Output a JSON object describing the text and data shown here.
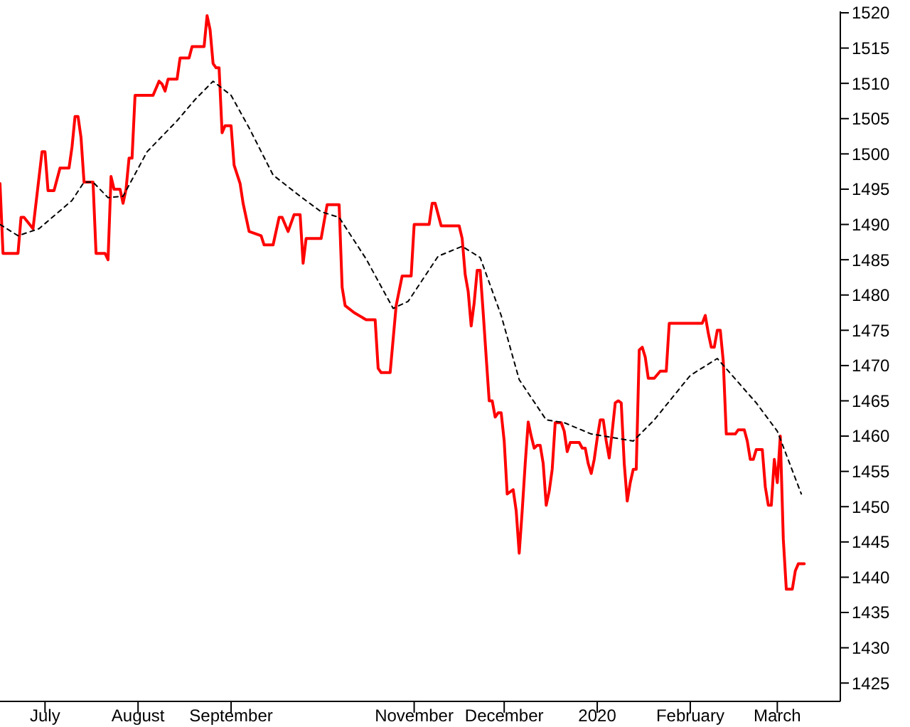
{
  "chart_data": {
    "type": "line",
    "xlim": [
      "2019-06-16",
      "2020-03-22"
    ],
    "ylim": [
      1422.4,
      1520.2
    ],
    "xticks": [
      {
        "value": "2019-07-01",
        "label": "July"
      },
      {
        "value": "2019-08-01",
        "label": "August"
      },
      {
        "value": "2019-09-01",
        "label": "September"
      },
      {
        "value": "2019-11-01",
        "label": "November"
      },
      {
        "value": "2019-12-01",
        "label": "December"
      },
      {
        "value": "2020-01-01",
        "label": "2020"
      },
      {
        "value": "2020-02-01",
        "label": "February"
      },
      {
        "value": "2020-03-01",
        "label": "March"
      }
    ],
    "yticks": [
      1425,
      1430,
      1435,
      1440,
      1445,
      1450,
      1455,
      1460,
      1465,
      1470,
      1475,
      1480,
      1485,
      1490,
      1495,
      1500,
      1505,
      1510,
      1515,
      1520
    ],
    "grid": false,
    "marker": "none",
    "series": [
      {
        "color": "#ff0000",
        "line_style": "solid",
        "x": [
          "2019-06-16",
          "2019-06-17",
          "2019-06-22",
          "2019-06-23",
          "2019-06-24",
          "2019-06-27",
          "2019-06-30",
          "2019-07-01",
          "2019-07-02",
          "2019-07-04",
          "2019-07-06",
          "2019-07-09",
          "2019-07-10",
          "2019-07-11",
          "2019-07-12",
          "2019-07-13",
          "2019-07-14",
          "2019-07-17",
          "2019-07-18",
          "2019-07-21",
          "2019-07-22",
          "2019-07-23",
          "2019-07-24",
          "2019-07-26",
          "2019-07-27",
          "2019-07-28",
          "2019-07-29",
          "2019-07-30",
          "2019-07-31",
          "2019-08-06",
          "2019-08-08",
          "2019-08-09",
          "2019-08-10",
          "2019-08-11",
          "2019-08-14",
          "2019-08-15",
          "2019-08-18",
          "2019-08-19",
          "2019-08-23",
          "2019-08-24",
          "2019-08-25",
          "2019-08-26",
          "2019-08-27",
          "2019-08-28",
          "2019-08-29",
          "2019-08-30",
          "2019-09-01",
          "2019-09-02",
          "2019-09-04",
          "2019-09-05",
          "2019-09-07",
          "2019-09-11",
          "2019-09-12",
          "2019-09-15",
          "2019-09-17",
          "2019-09-18",
          "2019-09-20",
          "2019-09-22",
          "2019-09-24",
          "2019-09-25",
          "2019-09-26",
          "2019-10-01",
          "2019-10-03",
          "2019-10-07",
          "2019-10-08",
          "2019-10-09",
          "2019-10-12",
          "2019-10-16",
          "2019-10-19",
          "2019-10-20",
          "2019-10-21",
          "2019-10-24",
          "2019-10-26",
          "2019-10-28",
          "2019-10-31",
          "2019-11-01",
          "2019-11-06",
          "2019-11-07",
          "2019-11-08",
          "2019-11-10",
          "2019-11-16",
          "2019-11-17",
          "2019-11-18",
          "2019-11-19",
          "2019-11-20",
          "2019-11-21",
          "2019-11-22",
          "2019-11-23",
          "2019-11-24",
          "2019-11-25",
          "2019-11-26",
          "2019-11-27",
          "2019-11-28",
          "2019-11-29",
          "2019-11-30",
          "2019-12-01",
          "2019-12-02",
          "2019-12-04",
          "2019-12-05",
          "2019-12-06",
          "2019-12-07",
          "2019-12-08",
          "2019-12-09",
          "2019-12-10",
          "2019-12-11",
          "2019-12-12",
          "2019-12-13",
          "2019-12-14",
          "2019-12-15",
          "2019-12-16",
          "2019-12-17",
          "2019-12-18",
          "2019-12-20",
          "2019-12-21",
          "2019-12-22",
          "2019-12-23",
          "2019-12-26",
          "2019-12-27",
          "2019-12-28",
          "2019-12-29",
          "2019-12-30",
          "2019-12-31",
          "2020-01-01",
          "2020-01-02",
          "2020-01-03",
          "2020-01-04",
          "2020-01-05",
          "2020-01-06",
          "2020-01-07",
          "2020-01-08",
          "2020-01-09",
          "2020-01-10",
          "2020-01-11",
          "2020-01-12",
          "2020-01-13",
          "2020-01-14",
          "2020-01-15",
          "2020-01-16",
          "2020-01-17",
          "2020-01-18",
          "2020-01-20",
          "2020-01-22",
          "2020-01-24",
          "2020-01-25",
          "2020-01-26",
          "2020-02-05",
          "2020-02-06",
          "2020-02-07",
          "2020-02-08",
          "2020-02-09",
          "2020-02-10",
          "2020-02-11",
          "2020-02-12",
          "2020-02-13",
          "2020-02-16",
          "2020-02-17",
          "2020-02-19",
          "2020-02-20",
          "2020-02-21",
          "2020-02-22",
          "2020-02-23",
          "2020-02-25",
          "2020-02-26",
          "2020-02-27",
          "2020-02-28",
          "2020-02-29",
          "2020-03-01",
          "2020-03-02",
          "2020-03-03",
          "2020-03-04",
          "2020-03-06",
          "2020-03-07",
          "2020-03-08",
          "2020-03-10"
        ],
        "values": [
          1495.8,
          1485.9,
          1485.9,
          1491.0,
          1491.0,
          1489.4,
          1500.3,
          1500.3,
          1494.8,
          1494.8,
          1498.0,
          1498.0,
          1501.0,
          1505.3,
          1505.3,
          1502.3,
          1496.0,
          1496.0,
          1485.9,
          1485.9,
          1485.0,
          1496.8,
          1495.0,
          1495.0,
          1493.0,
          1495.0,
          1499.4,
          1499.4,
          1508.3,
          1508.3,
          1510.3,
          1509.9,
          1508.9,
          1510.6,
          1510.6,
          1513.6,
          1513.6,
          1515.2,
          1515.2,
          1519.6,
          1517.6,
          1512.8,
          1512.2,
          1512.2,
          1503.0,
          1504.0,
          1504.0,
          1498.4,
          1495.8,
          1493.0,
          1489.0,
          1488.4,
          1487.1,
          1487.1,
          1491.0,
          1491.0,
          1489.0,
          1491.4,
          1491.4,
          1484.5,
          1488.0,
          1488.0,
          1492.8,
          1492.8,
          1481.1,
          1478.5,
          1477.5,
          1476.5,
          1476.5,
          1469.6,
          1469.0,
          1469.0,
          1478.5,
          1482.7,
          1482.7,
          1490.0,
          1490.0,
          1493.0,
          1493.0,
          1489.8,
          1489.8,
          1488.0,
          1482.9,
          1480.5,
          1475.6,
          1478.9,
          1483.5,
          1483.5,
          1477.5,
          1471.2,
          1465.0,
          1465.0,
          1462.7,
          1463.3,
          1463.3,
          1459.3,
          1451.8,
          1452.4,
          1449.4,
          1443.4,
          1449.4,
          1456.1,
          1462.0,
          1460.0,
          1458.3,
          1458.7,
          1458.7,
          1456.1,
          1450.2,
          1452.2,
          1455.3,
          1461.9,
          1461.9,
          1460.7,
          1457.8,
          1459.1,
          1459.1,
          1458.3,
          1458.3,
          1456.1,
          1454.7,
          1456.7,
          1459.7,
          1462.3,
          1462.3,
          1459.3,
          1456.9,
          1460.7,
          1464.7,
          1465.0,
          1464.7,
          1456.1,
          1450.8,
          1453.4,
          1455.3,
          1455.3,
          1472.2,
          1472.6,
          1471.2,
          1468.2,
          1468.2,
          1469.2,
          1469.2,
          1476.0,
          1476.0,
          1476.0,
          1477.1,
          1474.6,
          1472.6,
          1472.6,
          1475.0,
          1475.0,
          1470.6,
          1460.3,
          1460.3,
          1460.9,
          1460.9,
          1459.3,
          1456.7,
          1456.7,
          1458.1,
          1458.1,
          1452.8,
          1450.2,
          1450.2,
          1456.7,
          1453.4,
          1460.0,
          1445.4,
          1438.3,
          1438.3,
          1440.9,
          1441.9,
          1441.9
        ]
      },
      {
        "color": "#000000",
        "line_style": "dashed",
        "x": [
          "2019-06-16",
          "2019-06-22",
          "2019-06-29",
          "2019-07-10",
          "2019-07-14",
          "2019-07-17",
          "2019-07-22",
          "2019-07-27",
          "2019-08-04",
          "2019-08-14",
          "2019-08-20",
          "2019-08-26",
          "2019-09-01",
          "2019-09-07",
          "2019-09-15",
          "2019-09-24",
          "2019-10-01",
          "2019-10-07",
          "2019-10-16",
          "2019-10-25",
          "2019-10-30",
          "2019-11-09",
          "2019-11-17",
          "2019-11-23",
          "2019-11-30",
          "2019-12-06",
          "2019-12-15",
          "2019-12-21",
          "2019-12-30",
          "2020-01-13",
          "2020-01-20",
          "2020-02-01",
          "2020-02-10",
          "2020-02-23",
          "2020-03-01",
          "2020-03-09"
        ],
        "values": [
          1490.0,
          1488.4,
          1489.4,
          1493.4,
          1496.0,
          1496.0,
          1493.8,
          1494.0,
          1500.3,
          1504.7,
          1507.7,
          1510.3,
          1508.3,
          1503.7,
          1497.0,
          1494.0,
          1491.8,
          1491.0,
          1485.1,
          1478.1,
          1479.1,
          1485.5,
          1486.9,
          1485.3,
          1477.1,
          1468.0,
          1462.3,
          1461.9,
          1460.3,
          1459.3,
          1462.3,
          1468.6,
          1471.0,
          1464.7,
          1460.7,
          1451.8
        ]
      }
    ]
  }
}
